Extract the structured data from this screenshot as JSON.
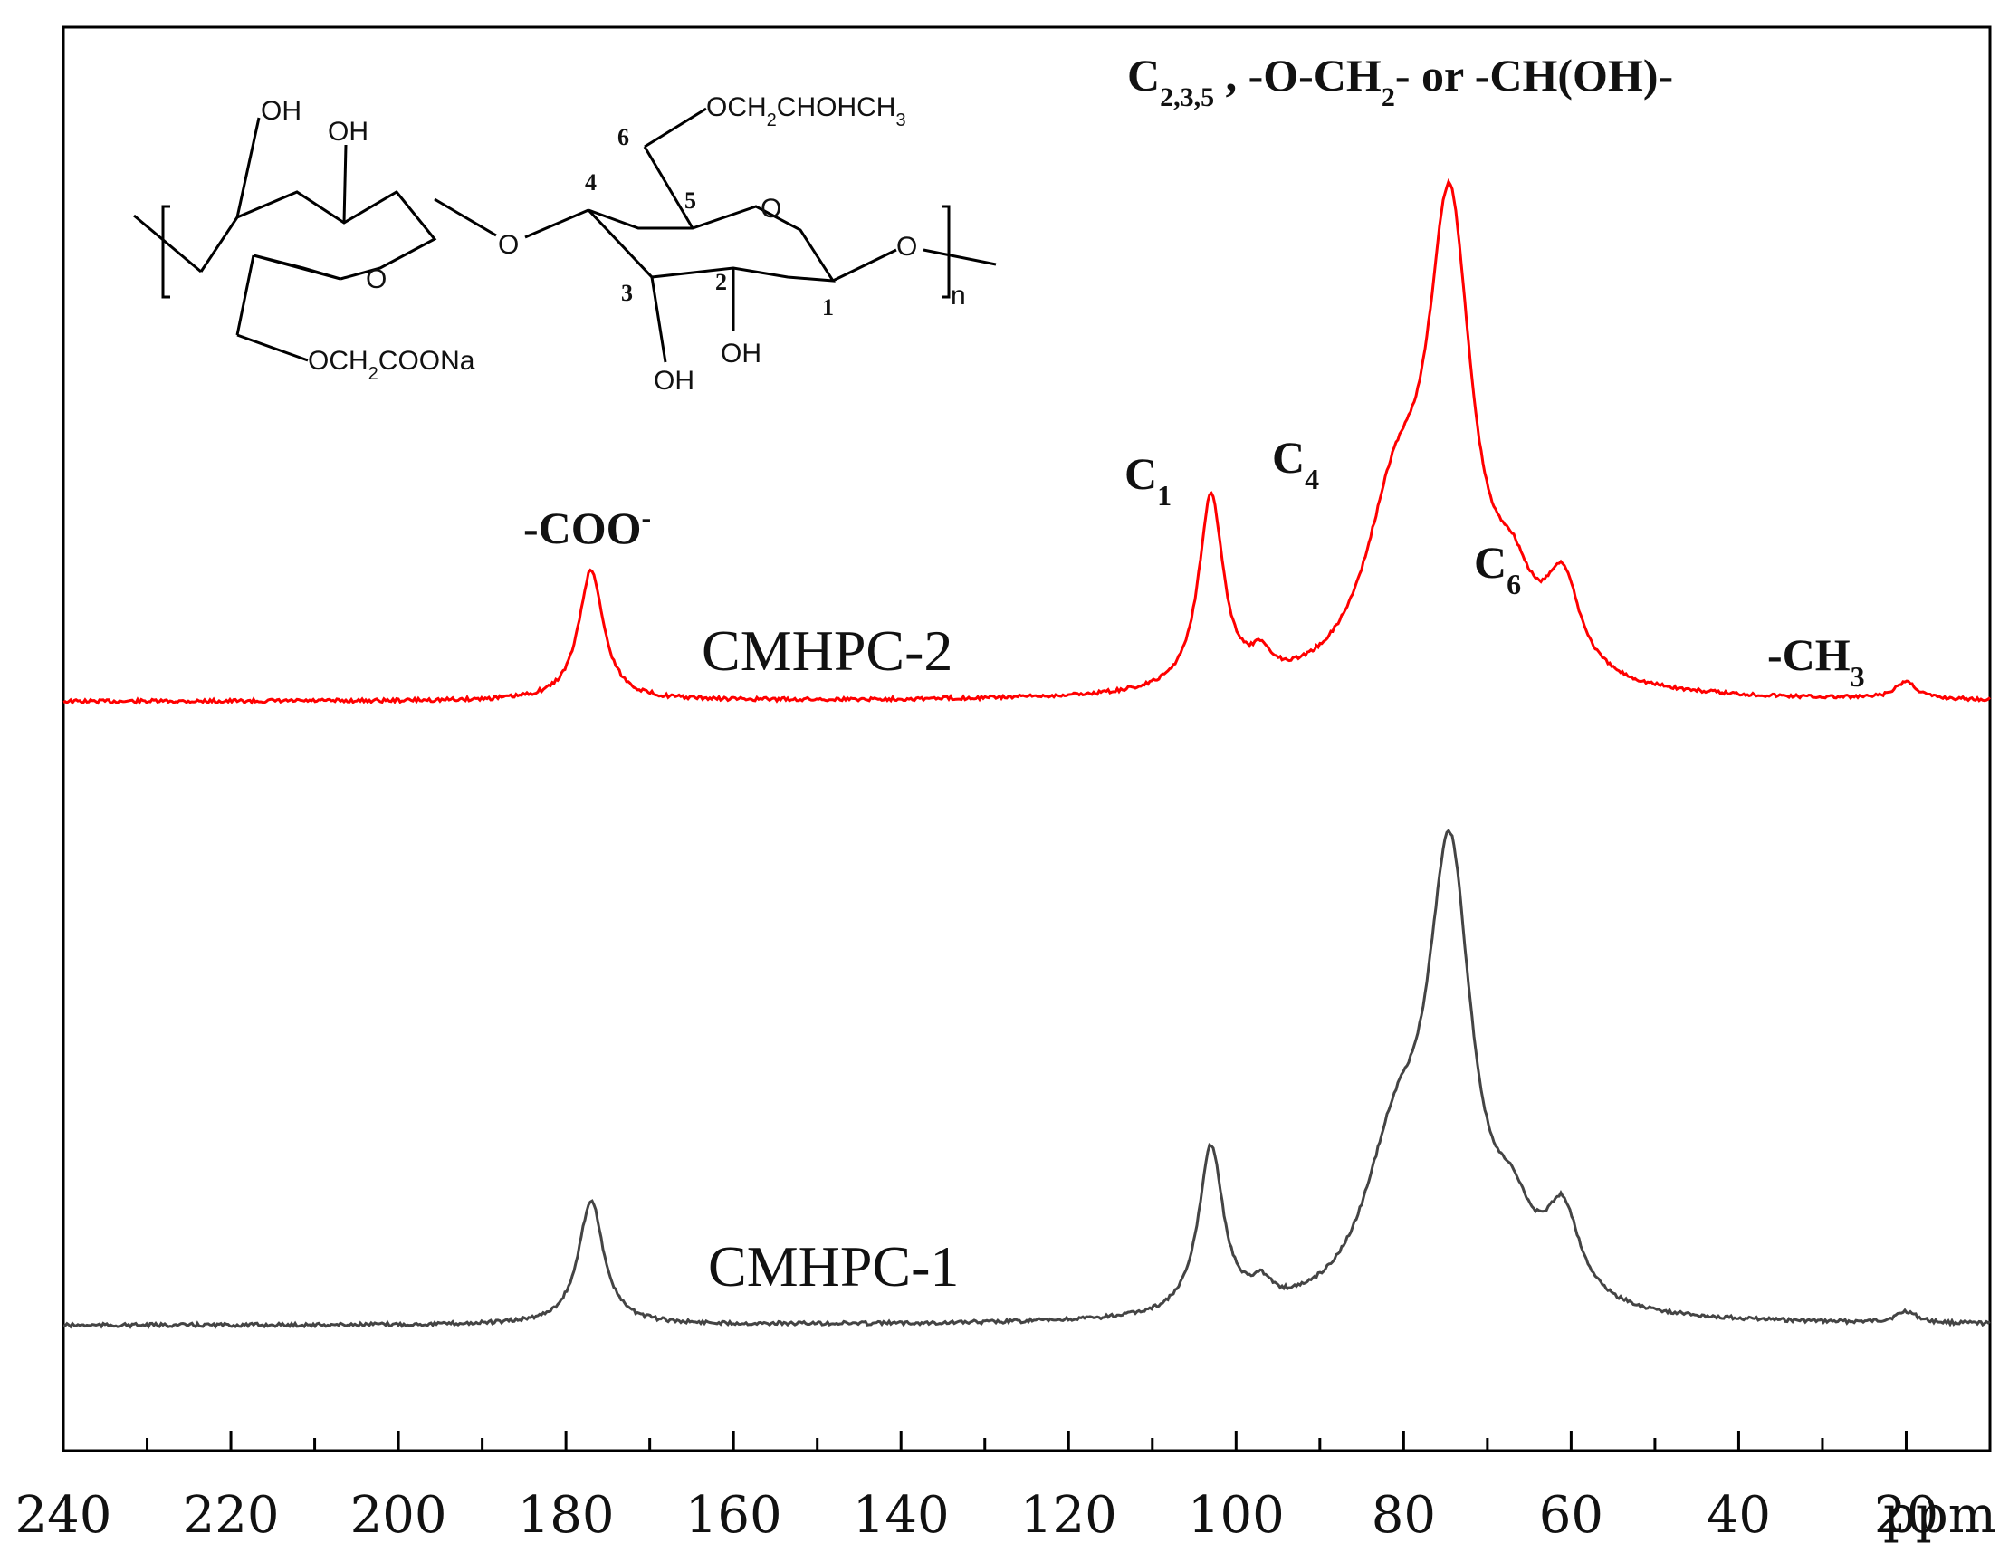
{
  "chart_data": {
    "type": "line",
    "xlabel": "ppm",
    "xlim": [
      240,
      10
    ],
    "x_ticks": [
      240,
      220,
      200,
      180,
      160,
      140,
      120,
      100,
      80,
      60,
      40,
      20
    ],
    "x_unit": "ppm",
    "y_ticks": [],
    "grid": false,
    "legend": "none",
    "series": [
      {
        "name": "CMHPC-2",
        "color": "#ff0000",
        "offset": 1.0,
        "peaks": [
          {
            "x": 177,
            "height": 0.225,
            "width": 1.8
          },
          {
            "x": 103,
            "height": 0.335,
            "width": 1.8
          },
          {
            "x": 97,
            "height": 0.04,
            "width": 1.5
          },
          {
            "x": 81,
            "height": 0.28,
            "width": 4.5
          },
          {
            "x": 74.5,
            "height": 0.78,
            "width": 3.2
          },
          {
            "x": 67,
            "height": 0.12,
            "width": 3.0
          },
          {
            "x": 61,
            "height": 0.16,
            "width": 2.5
          },
          {
            "x": 20,
            "height": 0.03,
            "width": 1.5
          }
        ]
      },
      {
        "name": "CMHPC-1",
        "color": "#444444",
        "offset": 0.0,
        "peaks": [
          {
            "x": 177,
            "height": 0.215,
            "width": 1.8
          },
          {
            "x": 103,
            "height": 0.29,
            "width": 1.8
          },
          {
            "x": 97,
            "height": 0.035,
            "width": 1.5
          },
          {
            "x": 81,
            "height": 0.25,
            "width": 4.5
          },
          {
            "x": 74.5,
            "height": 0.75,
            "width": 3.2
          },
          {
            "x": 67,
            "height": 0.11,
            "width": 3.0
          },
          {
            "x": 61,
            "height": 0.15,
            "width": 2.5
          },
          {
            "x": 20,
            "height": 0.02,
            "width": 1.5
          }
        ]
      }
    ],
    "annotations": [
      {
        "text": "-COO",
        "sup": "-",
        "sub": "",
        "suffix": "",
        "x": 177
      },
      {
        "text": "C",
        "sub": "1",
        "sup": "",
        "suffix": "",
        "x": 103
      },
      {
        "text": "C",
        "sub": "4",
        "sup": "",
        "suffix": "",
        "x": 84
      },
      {
        "text": "C",
        "sub": "2,3,5",
        "sup": "",
        "suffix": " , -O-CH",
        "x": 74.5
      },
      {
        "text": "C",
        "sub": "6",
        "sup": "",
        "suffix": "",
        "x": 61
      },
      {
        "text": "-CH",
        "sub": "3",
        "sup": "",
        "suffix": "",
        "x": 20
      }
    ]
  },
  "labels": {
    "sample_top": "CMHPC-2",
    "sample_bottom": "CMHPC-1",
    "ppm_unit": "ppm",
    "peak_coo": "-COO",
    "peak_coo_sup": "-",
    "peak_c1": "C",
    "peak_c1_sub": "1",
    "peak_c4": "C",
    "peak_c4_sub": "4",
    "peak_c6": "C",
    "peak_c6_sub": "6",
    "peak_ch3": "-CH",
    "peak_ch3_sub": "3",
    "peak_main_c": "C",
    "peak_main_sub": "2,3,5",
    "peak_main_mid": " , -O-CH",
    "peak_main_sub2": "2",
    "peak_main_end": "- or -CH(OH)-"
  },
  "structure": {
    "oh_1": "OH",
    "oh_2": "OH",
    "oh_3": "OH",
    "oh_4": "OH",
    "o_ring_left": "O",
    "o_ring_right": "O",
    "o_bridge": "O",
    "o_end": "O",
    "sub_top_pre": "OCH",
    "sub_top_2": "2",
    "sub_top_post": "CHOHCH",
    "sub_top_3": "3",
    "sub_bottom_pre": "OCH",
    "sub_bottom_2": "2",
    "sub_bottom_post": "COONa",
    "repeat_n": "n",
    "num_1": "1",
    "num_2": "2",
    "num_3": "3",
    "num_4": "4",
    "num_5": "5",
    "num_6": "6"
  }
}
